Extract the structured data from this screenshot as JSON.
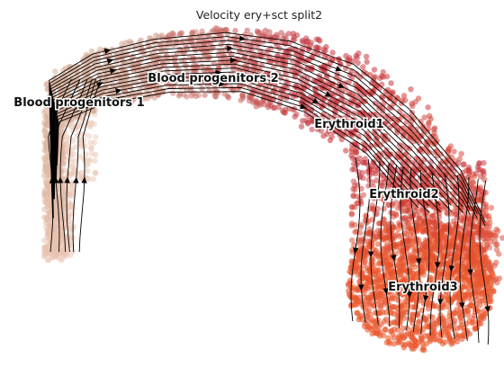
{
  "chart_data": {
    "type": "scatter",
    "title": "Velocity ery+sct split2",
    "xlabel": "",
    "ylabel": "",
    "grid": false,
    "legend": "none",
    "clusters": [
      {
        "name": "Blood progenitors 1",
        "color": "#e9c4b1"
      },
      {
        "name": "Blood progenitors 2",
        "color": "#cfa48f"
      },
      {
        "name": "Erythroid1",
        "color": "#c4303a"
      },
      {
        "name": "Erythroid2",
        "color": "#df5640"
      },
      {
        "name": "Erythroid3",
        "color": "#ee5a2a"
      }
    ],
    "overlay": "velocity streamlines"
  }
}
